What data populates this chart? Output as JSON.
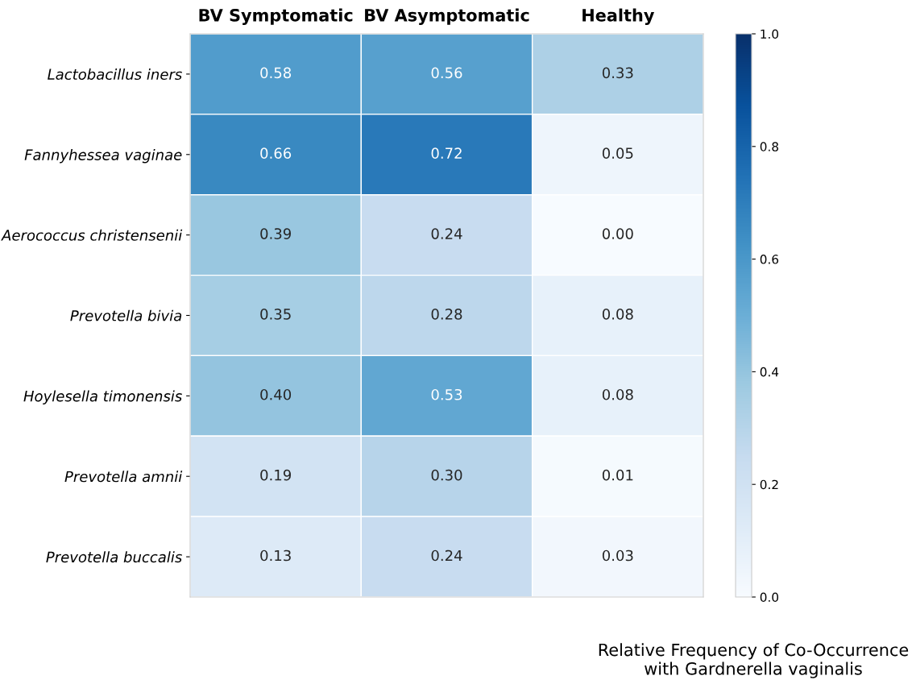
{
  "chart_data": {
    "type": "heatmap",
    "categories": [
      "BV Symptomatic",
      "BV Asymptomatic",
      "Healthy"
    ],
    "y_categories": [
      "Lactobacillus iners",
      "Fannyhessea vaginae",
      "Aerococcus christensenii",
      "Prevotella bivia",
      "Hoylesella timonensis",
      "Prevotella amnii",
      "Prevotella buccalis"
    ],
    "cells": [
      [
        0.58,
        0.56,
        0.33
      ],
      [
        0.66,
        0.72,
        0.05
      ],
      [
        0.39,
        0.24,
        0.0
      ],
      [
        0.35,
        0.28,
        0.08
      ],
      [
        0.4,
        0.53,
        0.08
      ],
      [
        0.19,
        0.3,
        0.01
      ],
      [
        0.13,
        0.24,
        0.03
      ]
    ],
    "cell_labels": [
      [
        "0.58",
        "0.56",
        "0.33"
      ],
      [
        "0.66",
        "0.72",
        "0.05"
      ],
      [
        "0.39",
        "0.24",
        "0.00"
      ],
      [
        "0.35",
        "0.28",
        "0.08"
      ],
      [
        "0.40",
        "0.53",
        "0.08"
      ],
      [
        "0.19",
        "0.30",
        "0.01"
      ],
      [
        "0.13",
        "0.24",
        "0.03"
      ]
    ],
    "clim": [
      0.0,
      1.0
    ],
    "cticks": [
      {
        "value": 0.0,
        "label": "0.0"
      },
      {
        "value": 0.2,
        "label": "0.2"
      },
      {
        "value": 0.4,
        "label": "0.4"
      },
      {
        "value": 0.6,
        "label": "0.6"
      },
      {
        "value": 0.8,
        "label": "0.8"
      },
      {
        "value": 1.0,
        "label": "1.0"
      }
    ],
    "clabel": "Relative Frequency of Co-Occurrence\nwith Gardnerella vaginalis"
  }
}
